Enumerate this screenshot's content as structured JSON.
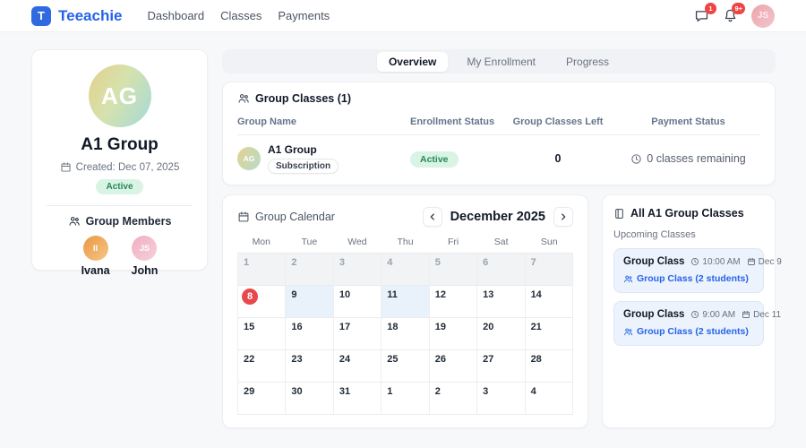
{
  "header": {
    "logo_letter": "T",
    "brand": "Teeachie",
    "nav": [
      {
        "label": "Dashboard"
      },
      {
        "label": "Classes"
      },
      {
        "label": "Payments"
      }
    ],
    "messages_badge": "1",
    "notifications_badge": "9+",
    "user_initials": "JS"
  },
  "group_card": {
    "initials": "AG",
    "name": "A1 Group",
    "created": "Created: Dec 07, 2025",
    "status": "Active",
    "members_title": "Group Members",
    "members": [
      {
        "initials": "II",
        "name": "Ivana"
      },
      {
        "initials": "JS",
        "name": "John"
      }
    ]
  },
  "tabs": [
    {
      "label": "Overview",
      "active": true
    },
    {
      "label": "My Enrollment",
      "active": false
    },
    {
      "label": "Progress",
      "active": false
    }
  ],
  "classes_table": {
    "title": "Group Classes (1)",
    "columns": [
      "Group Name",
      "Enrollment Status",
      "Group Classes Left",
      "Payment Status"
    ],
    "rows": [
      {
        "initials": "AG",
        "name": "A1 Group",
        "plan_badge": "Subscription",
        "enrollment_status": "Active",
        "classes_left": "0",
        "payment_status": "0 classes remaining"
      }
    ]
  },
  "calendar": {
    "title": "Group Calendar",
    "month": "December 2025",
    "weekdays": [
      "Mon",
      "Tue",
      "Wed",
      "Thu",
      "Fri",
      "Sat",
      "Sun"
    ],
    "weeks": [
      [
        {
          "d": "1",
          "muted": true
        },
        {
          "d": "2",
          "muted": true
        },
        {
          "d": "3",
          "muted": true
        },
        {
          "d": "4",
          "muted": true
        },
        {
          "d": "5",
          "muted": true
        },
        {
          "d": "6",
          "muted": true
        },
        {
          "d": "7",
          "muted": true
        }
      ],
      [
        {
          "d": "8",
          "today": true
        },
        {
          "d": "9",
          "highlight": true
        },
        {
          "d": "10"
        },
        {
          "d": "11",
          "highlight": true
        },
        {
          "d": "12"
        },
        {
          "d": "13"
        },
        {
          "d": "14"
        }
      ],
      [
        {
          "d": "15"
        },
        {
          "d": "16"
        },
        {
          "d": "17"
        },
        {
          "d": "18"
        },
        {
          "d": "19"
        },
        {
          "d": "20"
        },
        {
          "d": "21"
        }
      ],
      [
        {
          "d": "22"
        },
        {
          "d": "23"
        },
        {
          "d": "24"
        },
        {
          "d": "25"
        },
        {
          "d": "26"
        },
        {
          "d": "27"
        },
        {
          "d": "28"
        }
      ],
      [
        {
          "d": "29"
        },
        {
          "d": "30"
        },
        {
          "d": "31"
        },
        {
          "d": "1"
        },
        {
          "d": "2"
        },
        {
          "d": "3"
        },
        {
          "d": "4"
        }
      ]
    ]
  },
  "upcoming": {
    "title": "All A1 Group Classes",
    "subtitle": "Upcoming Classes",
    "items": [
      {
        "name": "Group Class",
        "time": "10:00 AM",
        "date": "Dec 9",
        "link": "Group Class (2 students)"
      },
      {
        "name": "Group Class",
        "time": "9:00 AM",
        "date": "Dec 11",
        "link": "Group Class (2 students)"
      }
    ]
  },
  "colors": {
    "brand_blue": "#2563eb",
    "alert_red": "#ef4444",
    "active_green_bg": "#d9f3e5",
    "active_green_text": "#27885a",
    "today_red": "#e8484b",
    "class_day_blue": "#e9f1fb",
    "link_blue": "#2563eb"
  }
}
